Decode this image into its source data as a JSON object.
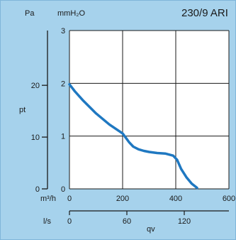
{
  "title": "230/9 ARI",
  "unit_pa": "Pa",
  "unit_mmh2o": "mmH₂O",
  "unit_m3h": "m³/h",
  "unit_ls": "l/s",
  "colors": {
    "background": "#a6d2ec",
    "plot": "#ffffff",
    "curve": "#1f78c1",
    "grid": "#1a1a1a"
  },
  "chart_data": {
    "type": "line",
    "title": "230/9 ARI",
    "ylabel": "pt",
    "xlabel": "qv",
    "grid": true,
    "xlim": [
      0,
      600
    ],
    "ylim": [
      0,
      3
    ],
    "x_ticks": [
      "0",
      "200",
      "400",
      "600"
    ],
    "y_ticks": [
      "0",
      "1",
      "2",
      "3"
    ],
    "pa_ticks": [
      "0",
      "10",
      "20"
    ],
    "ls_ticks": [
      "0",
      "60",
      "120"
    ],
    "series": [
      {
        "x": [
          0,
          20,
          50,
          100,
          150,
          200,
          215,
          225,
          240,
          260,
          280,
          300,
          330,
          360,
          390,
          405,
          420,
          440,
          460,
          480
        ],
        "values": [
          1.98,
          1.85,
          1.68,
          1.43,
          1.22,
          1.05,
          0.95,
          0.88,
          0.8,
          0.75,
          0.72,
          0.7,
          0.68,
          0.67,
          0.63,
          0.55,
          0.38,
          0.22,
          0.1,
          0.02
        ]
      }
    ]
  }
}
